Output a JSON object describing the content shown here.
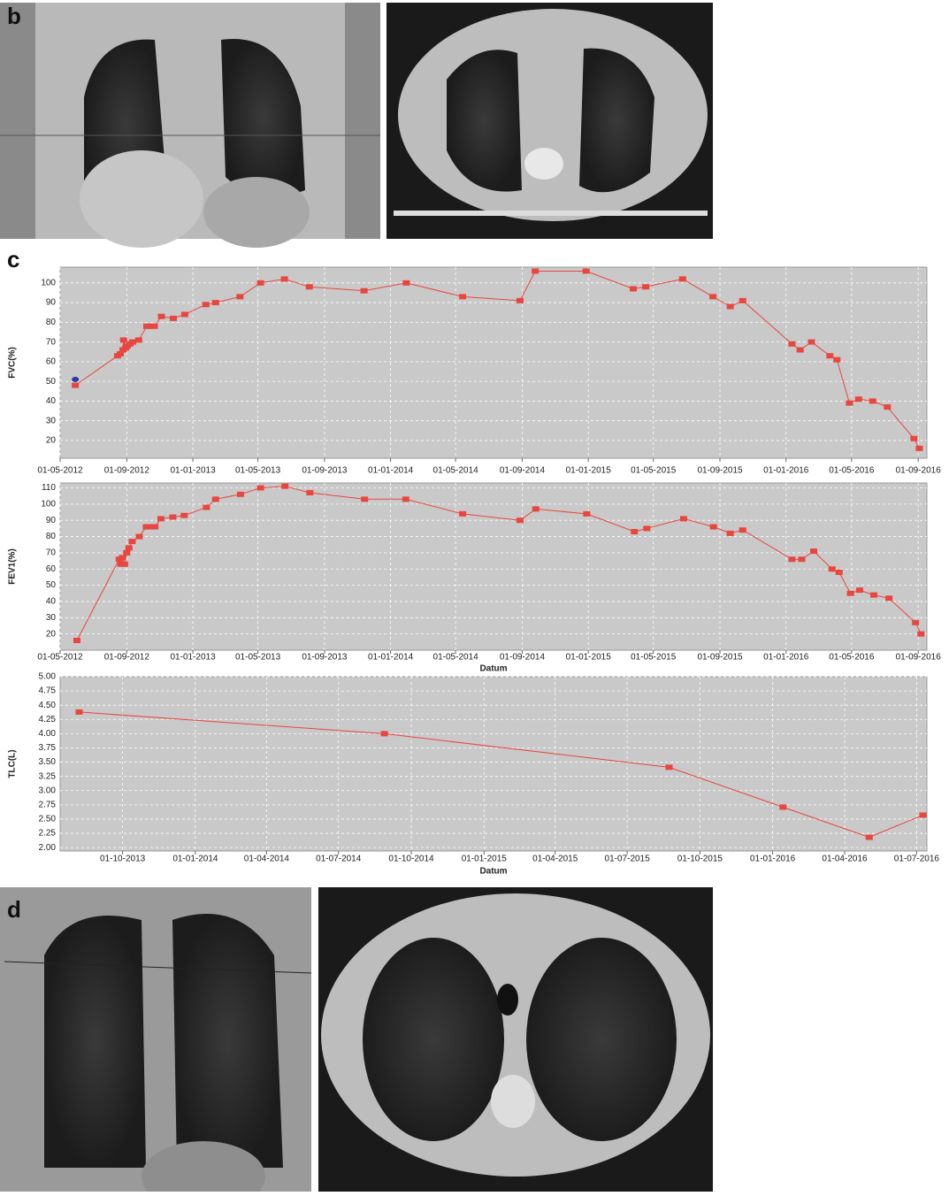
{
  "panel_labels": [
    "b",
    "c",
    "d"
  ],
  "chart_data": [
    {
      "type": "line",
      "ylabel": "FVC(%)",
      "xlim": [
        "2012-05-01",
        "2016-09-17"
      ],
      "ylim": [
        11,
        108
      ],
      "xticks": [
        {
          "value": "2012-05-01",
          "label": "01-05-2012"
        },
        {
          "value": "2012-09-01",
          "label": "01-09-2012"
        },
        {
          "value": "2013-01-01",
          "label": "01-01-2013"
        },
        {
          "value": "2013-05-01",
          "label": "01-05-2013"
        },
        {
          "value": "2013-09-01",
          "label": "01-09-2013"
        },
        {
          "value": "2014-01-01",
          "label": "01-01-2014"
        },
        {
          "value": "2014-05-01",
          "label": "01-05-2014"
        },
        {
          "value": "2014-09-01",
          "label": "01-09-2014"
        },
        {
          "value": "2015-01-01",
          "label": "01-01-2015"
        },
        {
          "value": "2015-05-01",
          "label": "01-05-2015"
        },
        {
          "value": "2015-09-01",
          "label": "01-09-2015"
        },
        {
          "value": "2016-01-01",
          "label": "01-01-2016"
        },
        {
          "value": "2016-05-01",
          "label": "01-05-2016"
        },
        {
          "value": "2016-09-01",
          "label": "01-09-2016"
        }
      ],
      "yticks": [
        20,
        30,
        40,
        50,
        60,
        70,
        80,
        90,
        100
      ],
      "grid": true,
      "series": [
        {
          "color": "#e8463f",
          "x": [
            "2012-05-29",
            "2012-08-15",
            "2012-08-20",
            "2012-08-25",
            "2012-08-26",
            "2012-08-30",
            "2012-09-02",
            "2012-09-07",
            "2012-09-12",
            "2012-09-23",
            "2012-10-08",
            "2012-10-14",
            "2012-10-22",
            "2012-11-04",
            "2012-11-26",
            "2012-12-17",
            "2013-01-25",
            "2013-02-12",
            "2013-03-29",
            "2013-05-06",
            "2013-06-19",
            "2013-08-04",
            "2013-11-13",
            "2014-01-30",
            "2014-05-14",
            "2014-08-28",
            "2014-09-25",
            "2014-12-28",
            "2015-03-25",
            "2015-04-17",
            "2015-06-24",
            "2015-08-19",
            "2015-09-20",
            "2015-10-13",
            "2016-01-12",
            "2016-01-27",
            "2016-02-17",
            "2016-03-22",
            "2016-04-04",
            "2016-04-27",
            "2016-05-14",
            "2016-06-09",
            "2016-07-06",
            "2016-08-24",
            "2016-09-03"
          ],
          "values": [
            48,
            63,
            64,
            66,
            71,
            67,
            68,
            69,
            70,
            71,
            78,
            78,
            78,
            83,
            82,
            84,
            89,
            90,
            93,
            100,
            102,
            98,
            96,
            100,
            93,
            91,
            106,
            106,
            97,
            98,
            102,
            93,
            88,
            91,
            69,
            66,
            70,
            63,
            61,
            39,
            41,
            40,
            37,
            21,
            16
          ]
        },
        {
          "color": "#2a3aa8",
          "x": [
            "2012-05-29"
          ],
          "values": [
            51
          ]
        }
      ]
    },
    {
      "type": "line",
      "ylabel": "FEV1(%)",
      "xlabel": "Datum",
      "xlim": [
        "2012-05-01",
        "2016-09-17"
      ],
      "ylim": [
        10,
        113
      ],
      "xticks": [
        {
          "value": "2012-05-01",
          "label": "01-05-2012"
        },
        {
          "value": "2012-09-01",
          "label": "01-09-2012"
        },
        {
          "value": "2013-01-01",
          "label": "01-01-2013"
        },
        {
          "value": "2013-05-01",
          "label": "01-05-2013"
        },
        {
          "value": "2013-09-01",
          "label": "01-09-2013"
        },
        {
          "value": "2014-01-01",
          "label": "01-01-2014"
        },
        {
          "value": "2014-05-01",
          "label": "01-05-2014"
        },
        {
          "value": "2014-09-01",
          "label": "01-09-2014"
        },
        {
          "value": "2015-01-01",
          "label": "01-01-2015"
        },
        {
          "value": "2015-05-01",
          "label": "01-05-2015"
        },
        {
          "value": "2015-09-01",
          "label": "01-09-2015"
        },
        {
          "value": "2016-01-01",
          "label": "01-01-2016"
        },
        {
          "value": "2016-05-01",
          "label": "01-05-2016"
        },
        {
          "value": "2016-09-01",
          "label": "01-09-2016"
        }
      ],
      "yticks": [
        20,
        30,
        40,
        50,
        60,
        70,
        80,
        90,
        100,
        110
      ],
      "grid": true,
      "series": [
        {
          "color": "#e8463f",
          "x": [
            "2012-06-01",
            "2012-08-18",
            "2012-08-21",
            "2012-08-24",
            "2012-08-28",
            "2012-09-01",
            "2012-09-05",
            "2012-09-11",
            "2012-09-24",
            "2012-10-07",
            "2012-10-15",
            "2012-10-23",
            "2012-11-03",
            "2012-11-25",
            "2012-12-16",
            "2013-01-26",
            "2013-02-12",
            "2013-03-30",
            "2013-05-06",
            "2013-06-20",
            "2013-08-05",
            "2013-11-14",
            "2014-01-29",
            "2014-05-14",
            "2014-08-28",
            "2014-09-26",
            "2014-12-29",
            "2015-03-27",
            "2015-04-19",
            "2015-06-26",
            "2015-08-20",
            "2015-09-20",
            "2015-10-13",
            "2016-01-12",
            "2016-01-30",
            "2016-02-21",
            "2016-03-26",
            "2016-04-08",
            "2016-04-29",
            "2016-05-16",
            "2016-06-11",
            "2016-07-09",
            "2016-08-27",
            "2016-09-06"
          ],
          "values": [
            16,
            66,
            63,
            67,
            63,
            70,
            73,
            77,
            80,
            86,
            86,
            86,
            91,
            92,
            93,
            98,
            103,
            106,
            110,
            111,
            107,
            103,
            103,
            94,
            90,
            97,
            94,
            83,
            85,
            91,
            86,
            82,
            84,
            66,
            66,
            71,
            60,
            58,
            45,
            47,
            44,
            42,
            27,
            20
          ]
        }
      ]
    },
    {
      "type": "line",
      "ylabel": "TLC(L)",
      "xlabel": "Datum",
      "xlim": [
        "2013-07-14",
        "2016-07-14"
      ],
      "ylim": [
        1.94,
        5.0
      ],
      "xticks": [
        {
          "value": "2013-10-01",
          "label": "01-10-2013"
        },
        {
          "value": "2014-01-01",
          "label": "01-01-2014"
        },
        {
          "value": "2014-04-01",
          "label": "01-04-2014"
        },
        {
          "value": "2014-07-01",
          "label": "01-07-2014"
        },
        {
          "value": "2014-10-01",
          "label": "01-10-2014"
        },
        {
          "value": "2015-01-01",
          "label": "01-01-2015"
        },
        {
          "value": "2015-04-01",
          "label": "01-04-2015"
        },
        {
          "value": "2015-07-01",
          "label": "01-07-2015"
        },
        {
          "value": "2015-10-01",
          "label": "01-10-2015"
        },
        {
          "value": "2016-01-01",
          "label": "01-01-2016"
        },
        {
          "value": "2016-04-01",
          "label": "01-04-2016"
        },
        {
          "value": "2016-07-01",
          "label": "01-07-2016"
        }
      ],
      "yticks": [
        {
          "value": 2,
          "label": "2.00"
        },
        {
          "value": 2.25,
          "label": "2.25"
        },
        {
          "value": 2.5,
          "label": "2.50"
        },
        {
          "value": 2.75,
          "label": "2.75"
        },
        {
          "value": 3,
          "label": "3.00"
        },
        {
          "value": 3.25,
          "label": "3.25"
        },
        {
          "value": 3.5,
          "label": "3.50"
        },
        {
          "value": 3.75,
          "label": "3.75"
        },
        {
          "value": 4,
          "label": "4.00"
        },
        {
          "value": 4.25,
          "label": "4.25"
        },
        {
          "value": 4.5,
          "label": "4.50"
        },
        {
          "value": 4.75,
          "label": "4.75"
        },
        {
          "value": 5,
          "label": "5.00"
        }
      ],
      "grid": true,
      "series": [
        {
          "color": "#e8463f",
          "x": [
            "2013-08-07",
            "2014-08-28",
            "2015-08-23",
            "2016-01-14",
            "2016-05-02",
            "2016-07-09"
          ],
          "values": [
            4.38,
            4.0,
            3.41,
            2.71,
            2.18,
            2.57
          ]
        }
      ]
    }
  ]
}
